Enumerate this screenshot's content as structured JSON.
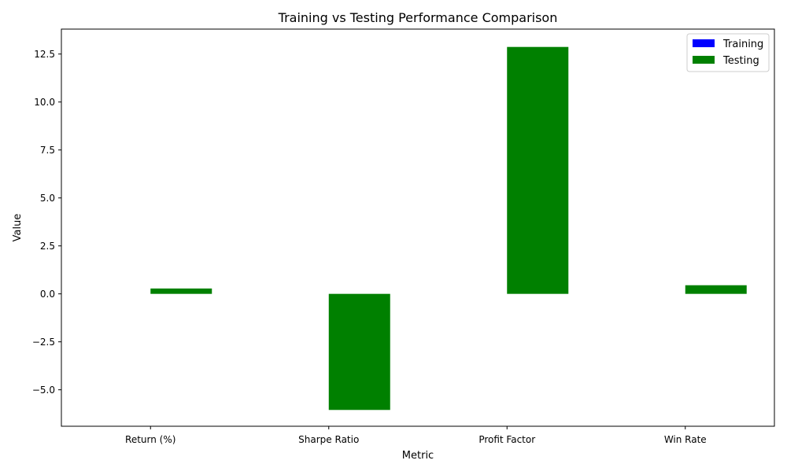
{
  "chart_data": {
    "type": "bar",
    "title": "Training vs Testing Performance Comparison",
    "xlabel": "Metric",
    "ylabel": "Value",
    "categories": [
      "Return (%)",
      "Sharpe Ratio",
      "Profit Factor",
      "Win Rate"
    ],
    "series": [
      {
        "name": "Training",
        "color": "#0000ff",
        "values": [
          0,
          0,
          0,
          0
        ]
      },
      {
        "name": "Testing",
        "color": "#008000",
        "values": [
          0.28,
          -6.05,
          12.87,
          0.45
        ]
      }
    ],
    "ylim": [
      -6.9,
      13.8
    ],
    "yticks": [
      -5.0,
      -2.5,
      0.0,
      2.5,
      5.0,
      7.5,
      10.0,
      12.5
    ],
    "ytick_labels": [
      "−5.0",
      "−2.5",
      "0.0",
      "2.5",
      "5.0",
      "7.5",
      "10.0",
      "12.5"
    ],
    "legend_position": "top-right"
  }
}
